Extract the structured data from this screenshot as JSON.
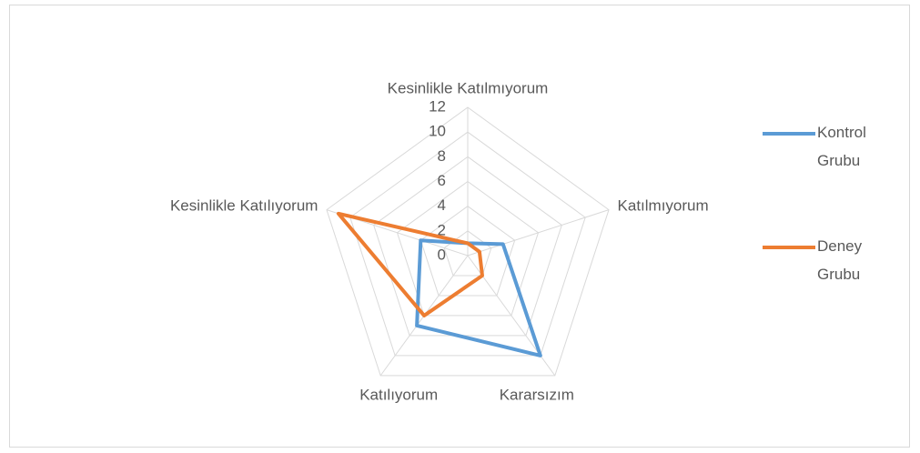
{
  "chart_data": {
    "type": "radar",
    "categories": [
      "Kesinlikle Katılmıyorum",
      "Katılmıyorum",
      "Kararsızım",
      "Katılıyorum",
      "Kesinlikle Katılıyorum"
    ],
    "series": [
      {
        "name": "Kontrol Grubu",
        "color": "#5b9bd5",
        "values": [
          1,
          3,
          10,
          7,
          4
        ]
      },
      {
        "name": "Deney Grubu",
        "color": "#ed7d31",
        "values": [
          1,
          1,
          2,
          6,
          11
        ]
      }
    ],
    "ylim": [
      0,
      12
    ],
    "yticks": [
      0,
      2,
      4,
      6,
      8,
      10,
      12
    ],
    "grid": true,
    "legend": "right"
  }
}
